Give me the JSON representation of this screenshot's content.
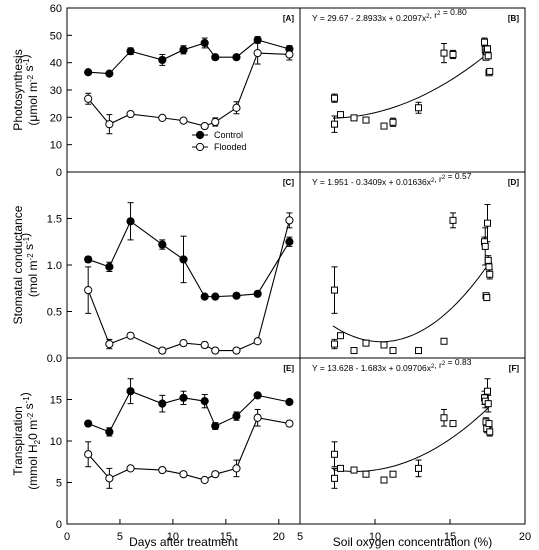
{
  "chart_data": [
    {
      "type": "line",
      "panel_label": "[A]",
      "ylabel_lines": [
        "Photosynthesis",
        "(μmol m-2 s-1)"
      ],
      "xlim": [
        0,
        22
      ],
      "ylim": [
        0,
        60
      ],
      "yticks": [
        "0",
        "10",
        "20",
        "30",
        "40",
        "50",
        "60"
      ],
      "legend": {
        "position": "center-right",
        "entries": [
          "Control",
          "Flooded"
        ]
      },
      "series": [
        {
          "name": "Control",
          "marker": "filled-circle",
          "x": [
            2,
            4,
            6,
            9,
            11,
            13,
            14,
            16,
            18,
            21
          ],
          "y": [
            36.5,
            36,
            44.2,
            41,
            44.7,
            47.2,
            42,
            42,
            48.3,
            45
          ],
          "err": [
            0.5,
            0.5,
            1.2,
            2,
            1.5,
            1.8,
            0.8,
            0.5,
            1.2,
            1.2
          ]
        },
        {
          "name": "Flooded",
          "marker": "open-circle",
          "x": [
            2,
            4,
            6,
            9,
            11,
            13,
            14,
            16,
            18,
            21
          ],
          "y": [
            26.8,
            17.5,
            21.2,
            19.8,
            18.8,
            16.8,
            18.3,
            23.5,
            43.5,
            43
          ],
          "err": [
            2,
            3.5,
            0.5,
            0.5,
            0.5,
            0.5,
            1.5,
            2.2,
            4,
            2
          ]
        }
      ]
    },
    {
      "type": "scatter",
      "panel_label": "[B]",
      "equation": "Y = 29.67 - 2.8933x + 0.2097x², r² = 0.80",
      "xlim": [
        5,
        20
      ],
      "ylim": [
        0,
        60
      ],
      "fit": {
        "a": 29.67,
        "b": -2.8933,
        "c": 0.2097,
        "x_range": [
          7.2,
          17.6
        ]
      },
      "x": [
        7.3,
        7.3,
        7.7,
        8.6,
        9.4,
        10.6,
        11.2,
        12.9,
        14.6,
        15.2,
        17.3,
        17.35,
        17.4,
        17.45,
        17.5,
        17.55,
        17.6,
        17.65
      ],
      "y": [
        27,
        17.5,
        21,
        19.8,
        19,
        16.8,
        18.2,
        23.5,
        43.5,
        43,
        47.5,
        44.7,
        42,
        44,
        45,
        42.5,
        36.3,
        36.8
      ],
      "err": [
        1.5,
        3,
        0.5,
        0.5,
        0.5,
        0.5,
        1.5,
        2,
        3.5,
        1.5,
        1.5,
        1.5,
        1,
        1.2,
        1.2,
        1,
        1,
        1
      ]
    },
    {
      "type": "line",
      "panel_label": "[C]",
      "ylabel_lines": [
        "Stomatal conductance",
        "(mol m-2 s-1)"
      ],
      "xlim": [
        0,
        22
      ],
      "ylim": [
        0,
        2.0
      ],
      "yticks": [
        "0.0",
        "0.5",
        "1.0",
        "1.5"
      ],
      "series": [
        {
          "name": "Control",
          "marker": "filled-circle",
          "x": [
            2,
            4,
            6,
            9,
            11,
            13,
            14,
            16,
            18,
            21
          ],
          "y": [
            1.06,
            0.98,
            1.47,
            1.22,
            1.06,
            0.66,
            0.66,
            0.67,
            0.69,
            1.25
          ],
          "err": [
            0.03,
            0.05,
            0.2,
            0.05,
            0.25,
            0.02,
            0.02,
            0.02,
            0.02,
            0.05
          ]
        },
        {
          "name": "Flooded",
          "marker": "open-circle",
          "x": [
            2,
            4,
            6,
            9,
            11,
            13,
            14,
            16,
            18,
            21
          ],
          "y": [
            0.73,
            0.15,
            0.24,
            0.08,
            0.16,
            0.14,
            0.08,
            0.08,
            0.18,
            1.48
          ],
          "err": [
            0.25,
            0.05,
            0.02,
            0.01,
            0.03,
            0.03,
            0.01,
            0.01,
            0.02,
            0.08
          ]
        }
      ]
    },
    {
      "type": "scatter",
      "panel_label": "[D]",
      "equation": "Y = 1.951 - 0.3409x + 0.01636x², r² = 0.57",
      "xlim": [
        5,
        20
      ],
      "ylim": [
        0,
        2.0
      ],
      "fit": {
        "a": 1.951,
        "b": -0.3409,
        "c": 0.01636,
        "x_range": [
          7.2,
          17.6
        ]
      },
      "x": [
        7.3,
        7.3,
        7.7,
        8.6,
        9.4,
        10.6,
        11.2,
        12.9,
        14.6,
        15.2,
        17.3,
        17.35,
        17.4,
        17.45,
        17.5,
        17.55,
        17.6,
        17.65
      ],
      "y": [
        0.73,
        0.15,
        0.24,
        0.08,
        0.16,
        0.14,
        0.08,
        0.08,
        0.18,
        1.48,
        1.25,
        1.2,
        0.67,
        0.65,
        1.45,
        1.05,
        0.98,
        0.9
      ],
      "err": [
        0.25,
        0.05,
        0.02,
        0.01,
        0.03,
        0.03,
        0.01,
        0.01,
        0.02,
        0.08,
        0.05,
        0.2,
        0.02,
        0.02,
        0.2,
        0.05,
        0.05,
        0.05
      ]
    },
    {
      "type": "line",
      "panel_label": "[E]",
      "ylabel_lines": [
        "Transpiration",
        "(mmol H20 m-2 s-1)"
      ],
      "xlim": [
        0,
        22
      ],
      "ylim": [
        0,
        20
      ],
      "yticks": [
        "0",
        "5",
        "10",
        "15"
      ],
      "xticks": [
        "0",
        "5",
        "10",
        "15",
        "20"
      ],
      "xlabel": "Days after treatment",
      "series": [
        {
          "name": "Control",
          "marker": "filled-circle",
          "x": [
            2,
            4,
            6,
            9,
            11,
            13,
            14,
            16,
            18,
            21
          ],
          "y": [
            12.1,
            11.1,
            16,
            14.5,
            15.2,
            14.8,
            11.8,
            13,
            15.5,
            14.7
          ],
          "err": [
            0.3,
            0.5,
            1.5,
            1,
            0.8,
            0.8,
            0.4,
            0.5,
            0.3,
            0.3
          ]
        },
        {
          "name": "Flooded",
          "marker": "open-circle",
          "x": [
            2,
            4,
            6,
            9,
            11,
            13,
            14,
            16,
            18,
            21
          ],
          "y": [
            8.4,
            5.5,
            6.7,
            6.5,
            6,
            5.3,
            6,
            6.7,
            12.8,
            12.1
          ],
          "err": [
            1.5,
            1.2,
            0.2,
            0.2,
            0.2,
            0.2,
            0.3,
            1,
            1,
            0.3
          ]
        }
      ]
    },
    {
      "type": "scatter",
      "panel_label": "[F]",
      "equation": "Y = 13.628 - 1.683x + 0.09706x², r² = 0.83",
      "xlim": [
        5,
        20
      ],
      "ylim": [
        0,
        20
      ],
      "xticks": [
        "5",
        "10",
        "15",
        "20"
      ],
      "xlabel": "Soil oxygen concentration (%)",
      "fit": {
        "a": 13.628,
        "b": -1.683,
        "c": 0.09706,
        "x_range": [
          7.2,
          17.6
        ]
      },
      "x": [
        7.3,
        7.3,
        7.7,
        8.6,
        9.4,
        10.6,
        11.2,
        12.9,
        14.6,
        15.2,
        17.3,
        17.35,
        17.4,
        17.45,
        17.5,
        17.55,
        17.6,
        17.65
      ],
      "y": [
        8.4,
        5.5,
        6.7,
        6.5,
        6,
        5.3,
        6,
        6.7,
        12.8,
        12.1,
        15.2,
        14.8,
        12.3,
        11.5,
        16,
        14.5,
        12.1,
        11.1
      ],
      "err": [
        1.5,
        1.2,
        0.2,
        0.2,
        0.2,
        0.2,
        0.3,
        1,
        1,
        0.3,
        0.8,
        0.8,
        0.5,
        0.5,
        1.5,
        1,
        0.3,
        0.5
      ]
    }
  ]
}
